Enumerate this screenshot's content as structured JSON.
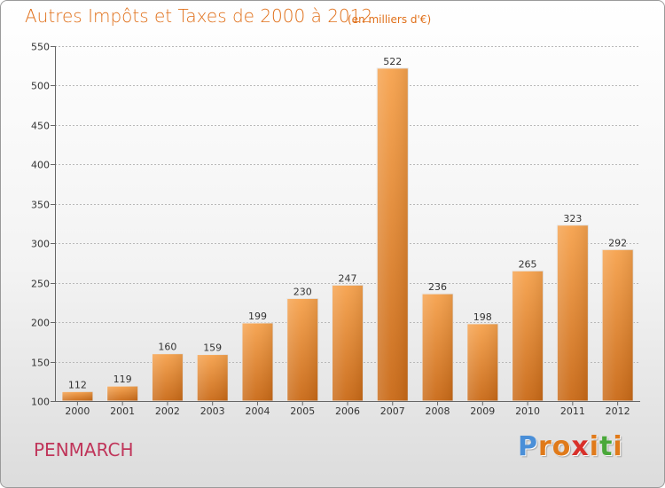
{
  "header": {
    "title": "Autres Impôts et Taxes de 2000 à 2012",
    "unit": "(en milliers d'€)"
  },
  "footer": {
    "commune": "PENMARCH",
    "logo_letters": [
      "P",
      "r",
      "o",
      "x",
      "i",
      "t",
      "i"
    ]
  },
  "colors": {
    "title": "#e0701a",
    "commune": "#c0355a",
    "bar_light": "#f6a24d",
    "bar_dark": "#c96916",
    "logo": [
      "#4a8fd8",
      "#e07a1a",
      "#e07a1a",
      "#d8302a",
      "#e07a1a",
      "#4aa83a",
      "#e07a1a"
    ]
  },
  "chart_data": {
    "type": "bar",
    "categories": [
      "2000",
      "2001",
      "2002",
      "2003",
      "2004",
      "2005",
      "2006",
      "2007",
      "2008",
      "2009",
      "2010",
      "2011",
      "2012"
    ],
    "values": [
      112,
      119,
      160,
      159,
      199,
      230,
      247,
      522,
      236,
      198,
      265,
      323,
      292
    ],
    "title": "Autres Impôts et Taxes de 2000 à 2012",
    "ylim": [
      100,
      550
    ],
    "yticks": [
      100,
      150,
      200,
      250,
      300,
      350,
      400,
      450,
      500,
      550
    ],
    "grid": true,
    "data_labels": true
  }
}
